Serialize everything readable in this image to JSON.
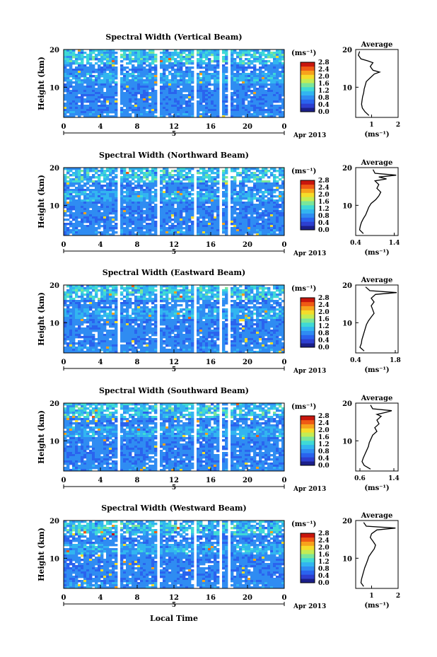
{
  "figure": {
    "colorbar_unit": "(ms⁻¹)",
    "colorbar_ticks": [
      "0.0",
      "0.4",
      "0.8",
      "1.2",
      "1.6",
      "2.0",
      "2.4",
      "2.8"
    ],
    "date_label": "Apr 2013",
    "day_label": "5",
    "xlabel_bottom": "Local Time",
    "height_label": "Height (km)",
    "average_title": "Average",
    "average_xlabel": "(ms⁻¹)"
  },
  "chart_data": [
    {
      "type": "heatmap",
      "title": "Spectral Width (Vertical Beam)",
      "ylabel": "Height (km)",
      "x_ticks": [
        "0",
        "4",
        "8",
        "12",
        "16",
        "20",
        "0"
      ],
      "y_ticks": [
        "10",
        "20"
      ],
      "xlim": [
        0,
        24
      ],
      "ylim": [
        2,
        20
      ],
      "gaps_hours": [
        [
          5.7,
          6.0
        ],
        [
          10.1,
          10.4
        ],
        [
          13.9,
          14.2
        ],
        [
          16.8,
          17.1
        ],
        [
          17.6,
          17.9
        ]
      ],
      "colorbar": {
        "range": [
          0,
          2.8
        ]
      },
      "average_profile": {
        "title": "Average",
        "xlabel": "(ms⁻¹)",
        "x_ticks": [
          "1",
          "2"
        ],
        "xlim": [
          0.4,
          2.0
        ],
        "y_ticks": [
          "10",
          "20"
        ],
        "ylim": [
          2,
          20
        ],
        "height": [
          2.5,
          3.5,
          4.5,
          5.5,
          6.5,
          7.5,
          8.5,
          9.5,
          10.5,
          11.5,
          12.5,
          13.5,
          14.0,
          14.5,
          15.5,
          16.5,
          17.0,
          17.5,
          18.5,
          19.5
        ],
        "width": [
          0.9,
          0.75,
          0.65,
          0.62,
          0.64,
          0.66,
          0.7,
          0.72,
          0.76,
          0.8,
          0.95,
          1.1,
          1.3,
          1.05,
          0.95,
          1.05,
          0.85,
          0.6,
          0.5,
          0.55
        ]
      }
    },
    {
      "type": "heatmap",
      "title": "Spectral Width (Northward Beam)",
      "ylabel": "Height (km)",
      "x_ticks": [
        "0",
        "4",
        "8",
        "12",
        "16",
        "20",
        "0"
      ],
      "y_ticks": [
        "10",
        "20"
      ],
      "xlim": [
        0,
        24
      ],
      "ylim": [
        2,
        20
      ],
      "gaps_hours": [
        [
          5.7,
          6.0
        ],
        [
          10.1,
          10.4
        ],
        [
          13.9,
          14.2
        ],
        [
          16.8,
          17.1
        ],
        [
          17.6,
          17.9
        ]
      ],
      "colorbar": {
        "range": [
          0,
          2.8
        ]
      },
      "average_profile": {
        "title": "Average",
        "xlabel": "(ms⁻¹)",
        "x_ticks": [
          "0.4",
          "1.4"
        ],
        "xlim": [
          0.4,
          1.5
        ],
        "y_ticks": [
          "10",
          "20"
        ],
        "ylim": [
          2,
          20
        ],
        "height": [
          2.5,
          3.5,
          4.5,
          5.5,
          6.5,
          7.5,
          8.5,
          9.5,
          10.5,
          11.5,
          12.5,
          13.5,
          14.5,
          15.5,
          16.5,
          17.0,
          17.5,
          18.0,
          18.5,
          19.5
        ],
        "width": [
          0.6,
          0.5,
          0.52,
          0.55,
          0.6,
          0.66,
          0.7,
          0.74,
          0.8,
          0.92,
          1.0,
          1.05,
          0.95,
          1.0,
          0.9,
          1.2,
          1.0,
          1.45,
          0.9,
          0.85
        ]
      }
    },
    {
      "type": "heatmap",
      "title": "Spectral Width (Eastward Beam)",
      "ylabel": "Height (km)",
      "x_ticks": [
        "0",
        "4",
        "8",
        "12",
        "16",
        "20",
        "0"
      ],
      "y_ticks": [
        "10",
        "20"
      ],
      "xlim": [
        0,
        24
      ],
      "ylim": [
        2,
        20
      ],
      "gaps_hours": [
        [
          5.7,
          6.0
        ],
        [
          10.1,
          10.4
        ],
        [
          13.9,
          14.2
        ],
        [
          16.8,
          17.1
        ],
        [
          17.6,
          17.9
        ]
      ],
      "colorbar": {
        "range": [
          0,
          2.8
        ]
      },
      "average_profile": {
        "title": "Average",
        "xlabel": "(ms⁻¹)",
        "x_ticks": [
          "0.4",
          "1.8"
        ],
        "xlim": [
          0.4,
          1.9
        ],
        "y_ticks": [
          "10",
          "20"
        ],
        "ylim": [
          2,
          20
        ],
        "height": [
          2.5,
          3.5,
          4.5,
          5.5,
          6.5,
          7.5,
          8.5,
          9.5,
          10.5,
          11.5,
          12.5,
          13.5,
          14.5,
          15.5,
          16.5,
          17.5,
          18.0,
          18.5,
          19.5
        ],
        "width": [
          0.7,
          0.55,
          0.6,
          0.62,
          0.66,
          0.7,
          0.74,
          0.78,
          0.85,
          0.95,
          1.05,
          1.0,
          0.95,
          1.05,
          0.95,
          1.1,
          1.85,
          0.9,
          0.75
        ]
      }
    },
    {
      "type": "heatmap",
      "title": "Spectral Width (Southward Beam)",
      "ylabel": "Height (km)",
      "x_ticks": [
        "0",
        "4",
        "8",
        "12",
        "16",
        "20",
        "0"
      ],
      "y_ticks": [
        "10",
        "20"
      ],
      "xlim": [
        0,
        24
      ],
      "ylim": [
        2,
        20
      ],
      "gaps_hours": [
        [
          5.7,
          6.0
        ],
        [
          10.1,
          10.4
        ],
        [
          13.9,
          14.2
        ],
        [
          16.8,
          17.1
        ],
        [
          17.6,
          17.9
        ]
      ],
      "colorbar": {
        "range": [
          0,
          2.8
        ]
      },
      "average_profile": {
        "title": "Average",
        "xlabel": "(ms⁻¹)",
        "x_ticks": [
          "0.6",
          "1.4"
        ],
        "xlim": [
          0.5,
          1.5
        ],
        "y_ticks": [
          "10",
          "20"
        ],
        "ylim": [
          2,
          20
        ],
        "height": [
          2.5,
          3.5,
          4.5,
          5.5,
          6.5,
          7.5,
          8.5,
          9.5,
          10.5,
          11.5,
          12.5,
          13.5,
          14.5,
          15.5,
          16.5,
          17.0,
          17.5,
          18.0,
          18.5,
          19.5
        ],
        "width": [
          0.85,
          0.7,
          0.65,
          0.68,
          0.72,
          0.76,
          0.8,
          0.82,
          0.86,
          0.9,
          1.0,
          0.95,
          1.05,
          1.0,
          1.1,
          1.0,
          1.2,
          1.35,
          0.9,
          0.85
        ]
      }
    },
    {
      "type": "heatmap",
      "title": "Spectral Width (Westward Beam)",
      "ylabel": "Height (km)",
      "xlabel": "Local Time",
      "x_ticks": [
        "0",
        "4",
        "8",
        "12",
        "16",
        "20",
        "0"
      ],
      "y_ticks": [
        "10",
        "20"
      ],
      "xlim": [
        0,
        24
      ],
      "ylim": [
        2,
        20
      ],
      "gaps_hours": [
        [
          5.7,
          6.0
        ],
        [
          10.1,
          10.4
        ],
        [
          13.9,
          14.2
        ],
        [
          16.8,
          17.1
        ],
        [
          17.6,
          17.9
        ]
      ],
      "colorbar": {
        "range": [
          0,
          2.8
        ]
      },
      "average_profile": {
        "title": "Average",
        "xlabel": "(ms⁻¹)",
        "x_ticks": [
          "1",
          "2"
        ],
        "xlim": [
          0.4,
          2.0
        ],
        "y_ticks": [
          "10",
          "20"
        ],
        "ylim": [
          2,
          20
        ],
        "height": [
          2.5,
          3.5,
          4.5,
          5.5,
          6.5,
          7.5,
          8.5,
          9.5,
          10.5,
          11.5,
          12.5,
          13.5,
          14.5,
          15.5,
          16.5,
          17.5,
          18.0,
          18.5,
          19.5
        ],
        "width": [
          0.7,
          0.6,
          0.62,
          0.66,
          0.7,
          0.74,
          0.8,
          0.85,
          0.9,
          1.0,
          1.1,
          1.15,
          1.05,
          0.95,
          1.0,
          1.2,
          1.9,
          0.8,
          0.7
        ]
      }
    }
  ]
}
